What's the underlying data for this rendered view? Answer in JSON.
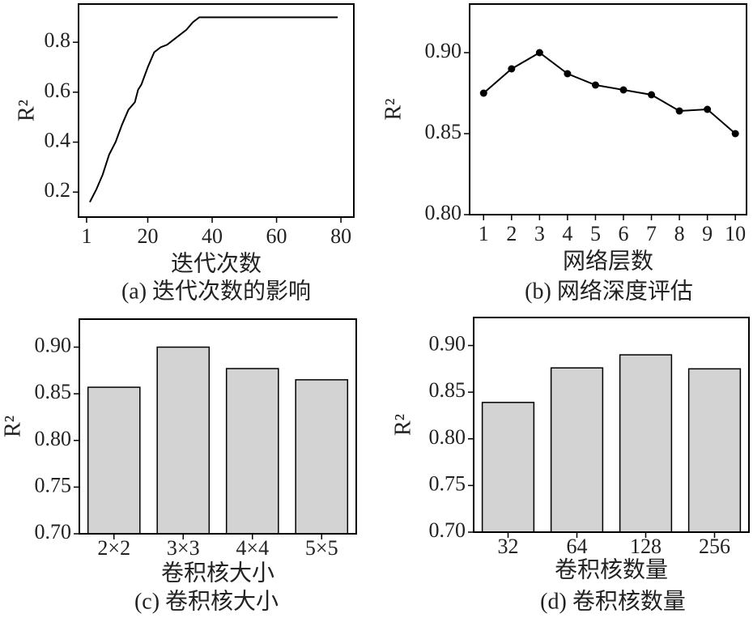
{
  "chart_data": [
    {
      "type": "line",
      "xlabel": "迭代次数",
      "ylabel": "R²",
      "caption": "(a) 迭代次数的影响",
      "color": "#000000",
      "x": [
        2,
        4,
        6,
        8,
        10,
        12,
        14,
        16,
        17,
        18,
        20,
        22,
        24,
        26,
        28,
        30,
        32,
        34,
        36,
        40,
        50,
        60,
        70,
        79
      ],
      "values": [
        0.16,
        0.21,
        0.27,
        0.35,
        0.4,
        0.47,
        0.53,
        0.56,
        0.61,
        0.63,
        0.7,
        0.76,
        0.78,
        0.79,
        0.81,
        0.83,
        0.85,
        0.88,
        0.9,
        0.9,
        0.9,
        0.9,
        0.9,
        0.9
      ],
      "xlim": [
        -1.5,
        84
      ],
      "xticks": [
        1,
        20,
        40,
        60,
        80
      ],
      "ylim": [
        0.1,
        0.953
      ],
      "yticks": [
        0.2,
        0.4,
        0.6,
        0.8
      ],
      "markers": false
    },
    {
      "type": "line",
      "xlabel": "网络层数",
      "ylabel": "R²",
      "caption": "(b) 网络深度评估",
      "color": "#000000",
      "x": [
        1,
        2,
        3,
        4,
        5,
        6,
        7,
        8,
        9,
        10
      ],
      "values": [
        0.875,
        0.89,
        0.9,
        0.887,
        0.88,
        0.877,
        0.874,
        0.864,
        0.865,
        0.85
      ],
      "xlim": [
        0.5,
        10.4
      ],
      "xticks": [
        1,
        2,
        3,
        4,
        5,
        6,
        7,
        8,
        9,
        10
      ],
      "ylim": [
        0.8,
        0.93
      ],
      "yticks": [
        {
          "value": 0.8,
          "label": "0.80"
        },
        {
          "value": 0.85,
          "label": "0.85"
        },
        {
          "value": 0.9,
          "label": "0.90"
        }
      ],
      "markers": true
    },
    {
      "type": "bar",
      "xlabel": "卷积核大小",
      "ylabel": "R²",
      "caption": "(c) 卷积核大小",
      "color": "#d3d3d3",
      "categories": [
        "2×2",
        "3×3",
        "4×4",
        "5×5"
      ],
      "values": [
        0.857,
        0.9,
        0.877,
        0.865
      ],
      "ylim": [
        0.7,
        0.93
      ],
      "yticks": [
        {
          "value": 0.7,
          "label": "0.70"
        },
        {
          "value": 0.75,
          "label": "0.75"
        },
        {
          "value": 0.8,
          "label": "0.80"
        },
        {
          "value": 0.85,
          "label": "0.85"
        },
        {
          "value": 0.9,
          "label": "0.90"
        }
      ]
    },
    {
      "type": "bar",
      "xlabel": "卷积核数量",
      "ylabel": "R²",
      "caption": "(d) 卷积核数量",
      "color": "#d3d3d3",
      "categories": [
        "32",
        "64",
        "128",
        "256"
      ],
      "values": [
        0.839,
        0.876,
        0.89,
        0.875
      ],
      "ylim": [
        0.7,
        0.93
      ],
      "yticks": [
        {
          "value": 0.7,
          "label": "0.70"
        },
        {
          "value": 0.75,
          "label": "0.75"
        },
        {
          "value": 0.8,
          "label": "0.80"
        },
        {
          "value": 0.85,
          "label": "0.85"
        },
        {
          "value": 0.9,
          "label": "0.90"
        }
      ]
    }
  ]
}
